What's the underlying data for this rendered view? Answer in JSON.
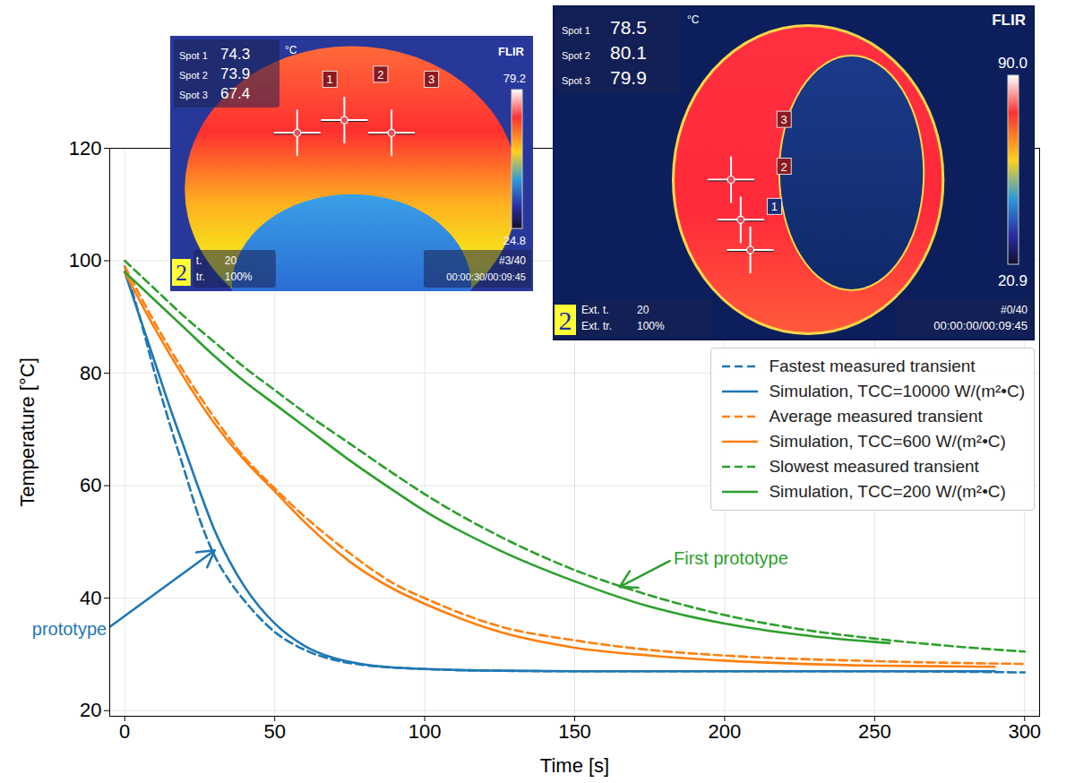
{
  "chart_data": {
    "type": "line",
    "x_label": "Time [s]",
    "y_label": "Temperature [°C]",
    "xlim": [
      -5,
      305
    ],
    "ylim": [
      19,
      120
    ],
    "xticks": [
      0,
      50,
      100,
      150,
      200,
      250,
      300
    ],
    "yticks": [
      20,
      40,
      60,
      80,
      100,
      120
    ],
    "grid": true,
    "legend": "right",
    "series": [
      {
        "name": "Fastest measured transient",
        "color": "#1f77b4",
        "line_style": "dashed",
        "x": [
          0,
          5,
          10,
          15,
          20,
          25,
          30,
          35,
          40,
          50,
          60,
          70,
          80,
          100,
          125,
          150,
          200,
          250,
          300
        ],
        "values": [
          99,
          90,
          80,
          71,
          62.5,
          54,
          47.5,
          43,
          39.5,
          34,
          30.8,
          29,
          28.1,
          27.4,
          27.1,
          27,
          27,
          27,
          26.8
        ]
      },
      {
        "name": "Simulation, TCC=10000 W/(m²•C)",
        "color": "#1f77b4",
        "line_style": "solid",
        "x": [
          0,
          5,
          10,
          15,
          20,
          25,
          30,
          35,
          40,
          50,
          60,
          70,
          80,
          100,
          125,
          150,
          200,
          250,
          290
        ],
        "values": [
          98,
          90,
          82,
          74,
          66.5,
          59,
          52,
          46.5,
          42,
          35.5,
          31.5,
          29.3,
          28.2,
          27.4,
          27.1,
          27,
          27,
          27,
          27
        ]
      },
      {
        "name": "Average measured transient",
        "color": "#ff7f0e",
        "line_style": "dashed",
        "x": [
          0,
          10,
          20,
          30,
          40,
          50,
          60,
          75,
          90,
          100,
          125,
          150,
          175,
          200,
          250,
          300
        ],
        "values": [
          99,
          89,
          80,
          72,
          65,
          59.5,
          54.5,
          48,
          42.5,
          40,
          35,
          32.5,
          30.8,
          29.8,
          28.8,
          28.3
        ]
      },
      {
        "name": "Simulation, TCC=600 W/(m²•C)",
        "color": "#ff7f0e",
        "line_style": "solid",
        "x": [
          0,
          10,
          20,
          30,
          40,
          50,
          60,
          75,
          90,
          100,
          125,
          150,
          175,
          200,
          250,
          290
        ],
        "values": [
          98,
          88,
          79,
          71,
          64.5,
          59,
          53.5,
          46.5,
          41.5,
          39,
          34,
          31.2,
          29.8,
          28.9,
          28,
          27.8
        ]
      },
      {
        "name": "Slowest measured transient",
        "color": "#2ca02c",
        "line_style": "dashed",
        "x": [
          0,
          10,
          20,
          30,
          40,
          50,
          60,
          75,
          90,
          100,
          125,
          150,
          175,
          200,
          225,
          250,
          275,
          300
        ],
        "values": [
          100,
          95,
          90,
          85.5,
          81,
          77,
          73,
          67.5,
          62,
          58.5,
          51,
          45,
          40.5,
          37,
          34.5,
          32.8,
          31.5,
          30.5
        ]
      },
      {
        "name": "Simulation, TCC=200 W/(m²•C)",
        "color": "#2ca02c",
        "line_style": "solid",
        "x": [
          0,
          10,
          20,
          30,
          40,
          50,
          60,
          75,
          90,
          100,
          125,
          150,
          175,
          200,
          225,
          255
        ],
        "values": [
          98,
          93,
          88,
          83,
          78.5,
          74.5,
          70.5,
          64.5,
          59,
          55.5,
          48.5,
          43,
          38.5,
          35.5,
          33.5,
          32
        ]
      }
    ],
    "annotations": [
      {
        "text": "First prototype",
        "color": "#2ca02c",
        "x": 165,
        "y": 42,
        "text_x": 183,
        "text_y": 47
      },
      {
        "text": "prototype",
        "color": "#1f77b4",
        "x": 30,
        "y": 48.5,
        "text_x": -6,
        "text_y": 34.5
      }
    ],
    "insets": [
      {
        "spots": [
          {
            "label": "Spot 1",
            "value": 74.3
          },
          {
            "label": "Spot 2",
            "value": 73.9
          },
          {
            "label": "Spot 3",
            "value": 67.4
          }
        ],
        "unit": "°C",
        "brand": "FLIR",
        "scale_max": 79.2,
        "scale_min": 24.8,
        "badge": "2",
        "ext": [
          {
            "label": "t.",
            "value": 20
          },
          {
            "label": "tr.",
            "value": {
              "value": 100,
              "label": "100%"
            }
          }
        ],
        "frame": "#3/40",
        "clock": "00:00:30/00:09:45",
        "markers": [
          "1",
          "2",
          "3"
        ]
      },
      {
        "spots": [
          {
            "label": "Spot 1",
            "value": 78.5
          },
          {
            "label": "Spot 2",
            "value": 80.1
          },
          {
            "label": "Spot 3",
            "value": 79.9
          }
        ],
        "unit": "°C",
        "brand": "FLIR",
        "scale_max": {
          "value": 90,
          "label": "90.0"
        },
        "scale_min": 20.9,
        "badge": "2",
        "ext": [
          {
            "label": "Ext. t.",
            "value": 20
          },
          {
            "label": "Ext. tr.",
            "value": {
              "value": 100,
              "label": "100%"
            }
          }
        ],
        "frame": "#0/40",
        "clock": "00:00:00/00:09:45",
        "markers": [
          "3",
          "2",
          "1"
        ]
      }
    ]
  }
}
